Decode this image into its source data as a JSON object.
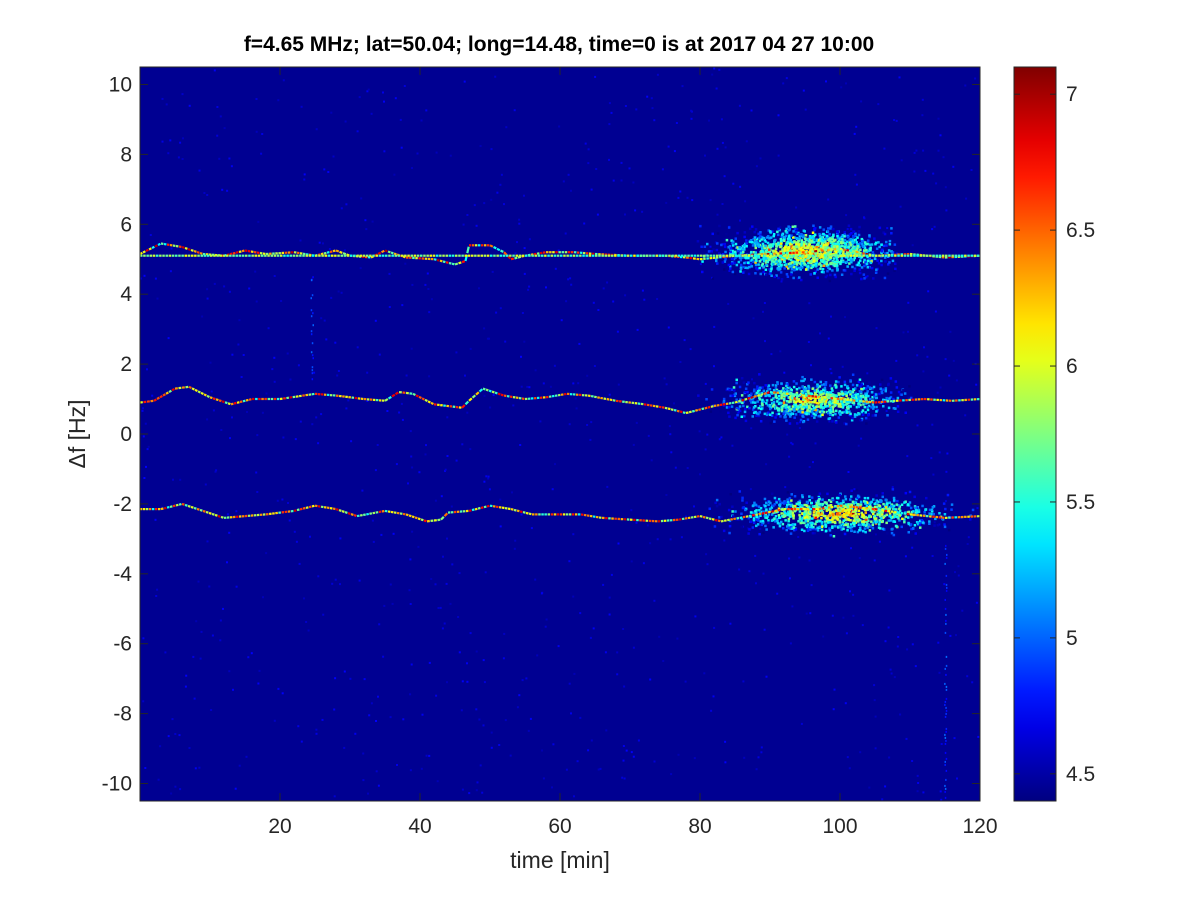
{
  "chart_data": {
    "type": "heatmap",
    "title": "f=4.65 MHz;  lat=50.04; long=14.48, time=0 is at 2017 04 27 10:00",
    "xlabel": "time [min]",
    "ylabel": "Δf [Hz]",
    "xlim": [
      0,
      120
    ],
    "ylim": [
      -10.5,
      10.5
    ],
    "xticks": [
      20,
      40,
      60,
      80,
      100,
      120
    ],
    "yticks": [
      10,
      8,
      6,
      4,
      2,
      0,
      -2,
      -4,
      -6,
      -8,
      -10
    ],
    "colorbar": {
      "colormap": "jet",
      "clim": [
        4.4,
        7.1
      ],
      "ticks": [
        7,
        6.5,
        6,
        5.5,
        5,
        4.5
      ]
    },
    "background_value": 4.45,
    "traces": [
      {
        "points": [
          [
            0,
            5.15
          ],
          [
            3,
            5.45
          ],
          [
            6,
            5.35
          ],
          [
            9,
            5.15
          ],
          [
            12,
            5.1
          ],
          [
            15,
            5.25
          ],
          [
            18,
            5.15
          ],
          [
            22,
            5.2
          ],
          [
            25,
            5.1
          ],
          [
            28,
            5.25
          ],
          [
            30,
            5.1
          ],
          [
            33,
            5.05
          ],
          [
            35,
            5.25
          ],
          [
            38,
            5.05
          ],
          [
            42,
            5.0
          ],
          [
            45,
            4.85
          ],
          [
            46.5,
            4.95
          ],
          [
            47,
            5.4
          ],
          [
            50,
            5.4
          ],
          [
            52,
            5.2
          ],
          [
            53,
            5.0
          ],
          [
            55,
            5.1
          ],
          [
            58,
            5.2
          ],
          [
            62,
            5.2
          ],
          [
            65,
            5.15
          ],
          [
            70,
            5.1
          ],
          [
            75,
            5.1
          ],
          [
            78,
            5.05
          ],
          [
            80,
            5.0
          ],
          [
            85,
            5.1
          ],
          [
            90,
            5.15
          ],
          [
            95,
            5.2
          ],
          [
            100,
            5.3
          ],
          [
            105,
            5.1
          ],
          [
            110,
            5.15
          ],
          [
            115,
            5.05
          ],
          [
            120,
            5.1
          ]
        ],
        "peak_value": 7.0
      },
      {
        "points": [
          [
            0,
            5.1
          ],
          [
            20,
            5.1
          ],
          [
            40,
            5.1
          ],
          [
            60,
            5.1
          ],
          [
            80,
            5.1
          ],
          [
            100,
            5.1
          ],
          [
            120,
            5.1
          ]
        ],
        "peak_value": 6.1
      },
      {
        "points": [
          [
            0,
            0.9
          ],
          [
            2,
            0.95
          ],
          [
            5,
            1.3
          ],
          [
            7,
            1.35
          ],
          [
            10,
            1.05
          ],
          [
            13,
            0.85
          ],
          [
            16,
            1.0
          ],
          [
            20,
            1.0
          ],
          [
            25,
            1.15
          ],
          [
            28,
            1.1
          ],
          [
            32,
            1.0
          ],
          [
            35,
            0.95
          ],
          [
            37,
            1.2
          ],
          [
            39,
            1.15
          ],
          [
            42,
            0.85
          ],
          [
            46,
            0.75
          ],
          [
            47,
            0.95
          ],
          [
            49,
            1.3
          ],
          [
            52,
            1.1
          ],
          [
            55,
            1.0
          ],
          [
            58,
            1.05
          ],
          [
            61,
            1.15
          ],
          [
            64,
            1.1
          ],
          [
            68,
            0.95
          ],
          [
            72,
            0.85
          ],
          [
            75,
            0.75
          ],
          [
            78,
            0.6
          ],
          [
            82,
            0.8
          ],
          [
            85,
            0.9
          ],
          [
            90,
            1.2
          ],
          [
            95,
            1.1
          ],
          [
            100,
            1.0
          ],
          [
            105,
            0.9
          ],
          [
            108,
            0.95
          ],
          [
            112,
            1.0
          ],
          [
            116,
            0.95
          ],
          [
            120,
            1.0
          ]
        ],
        "peak_value": 6.9
      },
      {
        "points": [
          [
            0,
            -2.15
          ],
          [
            3,
            -2.15
          ],
          [
            6,
            -2.0
          ],
          [
            9,
            -2.2
          ],
          [
            12,
            -2.4
          ],
          [
            15,
            -2.35
          ],
          [
            18,
            -2.3
          ],
          [
            22,
            -2.2
          ],
          [
            25,
            -2.05
          ],
          [
            28,
            -2.15
          ],
          [
            31,
            -2.35
          ],
          [
            35,
            -2.2
          ],
          [
            38,
            -2.3
          ],
          [
            41,
            -2.5
          ],
          [
            43,
            -2.45
          ],
          [
            44,
            -2.25
          ],
          [
            47,
            -2.2
          ],
          [
            50,
            -2.05
          ],
          [
            53,
            -2.15
          ],
          [
            56,
            -2.3
          ],
          [
            60,
            -2.3
          ],
          [
            63,
            -2.3
          ],
          [
            66,
            -2.4
          ],
          [
            70,
            -2.45
          ],
          [
            74,
            -2.5
          ],
          [
            77,
            -2.45
          ],
          [
            80,
            -2.35
          ],
          [
            83,
            -2.5
          ],
          [
            87,
            -2.35
          ],
          [
            92,
            -2.15
          ],
          [
            97,
            -2.15
          ],
          [
            100,
            -2.05
          ],
          [
            105,
            -2.15
          ],
          [
            110,
            -2.3
          ],
          [
            115,
            -2.4
          ],
          [
            120,
            -2.35
          ]
        ],
        "peak_value": 6.9
      }
    ],
    "scatter_regions": [
      {
        "x": [
          76,
          108
        ],
        "y": [
          4.3,
          6.0
        ],
        "center": [
          95,
          5.25
        ],
        "density": 1400,
        "peak_value": 6.6
      },
      {
        "x": [
          78,
          110
        ],
        "y": [
          0.3,
          1.8
        ],
        "center": [
          96,
          1.0
        ],
        "density": 900,
        "peak_value": 6.4
      },
      {
        "x": [
          80,
          120
        ],
        "y": [
          -2.9,
          -1.5
        ],
        "center": [
          100,
          -2.25
        ],
        "density": 1000,
        "peak_value": 6.6
      }
    ],
    "vertical_streaks": [
      {
        "x": 24.5,
        "y": [
          1.5,
          4.6
        ]
      },
      {
        "x": 115,
        "y": [
          -10.5,
          -3.0
        ]
      }
    ]
  }
}
